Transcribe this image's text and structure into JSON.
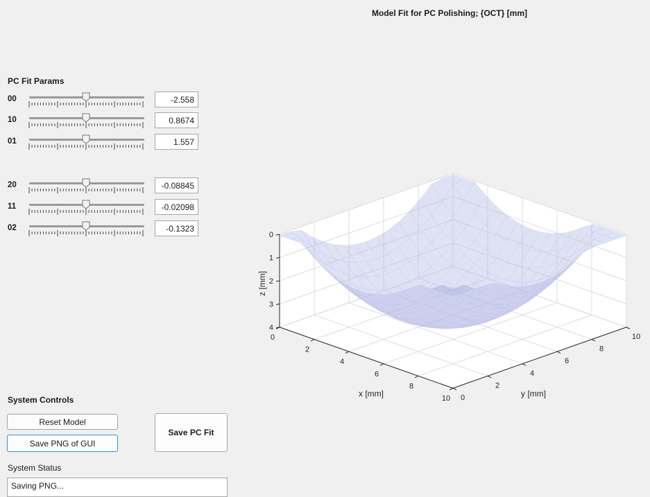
{
  "plot": {
    "title": "Model Fit for PC Polishing; {OCT} [mm]",
    "xlabel": "x [mm]",
    "ylabel": "y [mm]",
    "zlabel": "z [mm]",
    "x_ticks": [
      "0",
      "2",
      "4",
      "6",
      "8",
      "10"
    ],
    "y_ticks": [
      "0",
      "2",
      "4",
      "6",
      "8",
      "10"
    ],
    "z_ticks": [
      "0",
      "1",
      "2",
      "3",
      "4"
    ],
    "surface_color": "#b9bde6"
  },
  "params": {
    "title": "PC Fit Params",
    "rows": [
      {
        "label": "00",
        "value": "-2.558",
        "slider_fraction": 0.5
      },
      {
        "label": "10",
        "value": "0.8674",
        "slider_fraction": 0.5
      },
      {
        "label": "01",
        "value": "1.557",
        "slider_fraction": 0.5
      },
      {
        "label": "20",
        "value": "-0.08845",
        "slider_fraction": 0.5
      },
      {
        "label": "11",
        "value": "-0.02098",
        "slider_fraction": 0.5
      },
      {
        "label": "02",
        "value": "-0.1323",
        "slider_fraction": 0.5
      }
    ]
  },
  "controls": {
    "title": "System Controls",
    "reset_label": "Reset Model",
    "save_png_label": "Save PNG of GUI",
    "save_fit_label": "Save PC Fit"
  },
  "status": {
    "title": "System Status",
    "text": "Saving PNG..."
  }
}
